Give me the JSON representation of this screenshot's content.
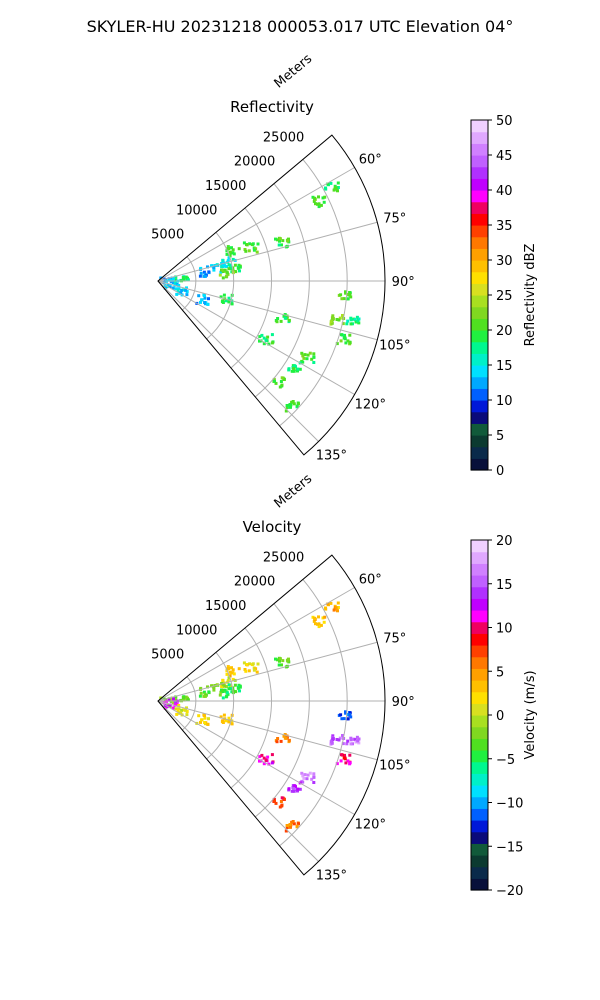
{
  "figure": {
    "suptitle": "SKYLER-HU  20231218  000053.017 UTC Elevation 04°"
  },
  "chart_data": [
    {
      "type": "heatmap",
      "title": "Reflectivity",
      "projection": "polar sector (PPI)",
      "radial_label": "Meters",
      "radial_ticks": [
        5000,
        10000,
        15000,
        20000,
        25000
      ],
      "radial_tick_labels": [
        "5000",
        "10000",
        "15000",
        "20000",
        "25000"
      ],
      "r_range": [
        0,
        30000
      ],
      "azimuth_range_deg": [
        50,
        140
      ],
      "angle_ticks_deg": [
        60,
        75,
        90,
        105,
        120,
        135
      ],
      "angle_tick_labels": [
        "60°",
        "75°",
        "90°",
        "105°",
        "120°",
        "135°"
      ],
      "grid": true,
      "colorbar": {
        "label": "Reflectivity dBZ",
        "vmin": 0,
        "vmax": 50,
        "ticks": [
          0,
          5,
          10,
          15,
          20,
          25,
          30,
          35,
          40,
          45,
          50
        ],
        "tick_labels": [
          "0",
          "5",
          "10",
          "15",
          "20",
          "25",
          "30",
          "35",
          "40",
          "45",
          "50"
        ],
        "colors": [
          "#08103a",
          "#0a2a4a",
          "#0b3a30",
          "#115a3a",
          "#0a0a7a",
          "#0018d8",
          "#0060ff",
          "#00a8ff",
          "#00e0ff",
          "#00f0c8",
          "#00f890",
          "#20f040",
          "#50e020",
          "#80d820",
          "#a8e020",
          "#d8e020",
          "#ffe000",
          "#ffc000",
          "#ffa000",
          "#ff7800",
          "#ff4000",
          "#ff0000",
          "#f00060",
          "#ff00ff",
          "#c000ff",
          "#b030ff",
          "#c060ff",
          "#d080ff",
          "#e0a8ff",
          "#f0d0ff"
        ]
      },
      "echoes": [
        {
          "az": 63,
          "r": 23500,
          "dbz": 20
        },
        {
          "az": 61,
          "r": 26000,
          "dbz": 19
        },
        {
          "az": 72,
          "r": 17000,
          "dbz": 20
        },
        {
          "az": 69,
          "r": 13000,
          "dbz": 21
        },
        {
          "az": 67,
          "r": 10500,
          "dbz": 20
        },
        {
          "az": 74,
          "r": 9500,
          "dbz": 15
        },
        {
          "az": 76,
          "r": 8000,
          "dbz": 14
        },
        {
          "az": 77,
          "r": 6500,
          "dbz": 12
        },
        {
          "az": 79,
          "r": 10000,
          "dbz": 19
        },
        {
          "az": 82,
          "r": 9000,
          "dbz": 22
        },
        {
          "az": 83,
          "r": 3000,
          "dbz": 18
        },
        {
          "az": 87,
          "r": 1000,
          "dbz": 12
        },
        {
          "az": 95,
          "r": 1500,
          "dbz": 14
        },
        {
          "az": 94,
          "r": 24500,
          "dbz": 21
        },
        {
          "az": 104,
          "r": 9000,
          "dbz": 19
        },
        {
          "az": 106,
          "r": 17000,
          "dbz": 20
        },
        {
          "az": 101,
          "r": 26000,
          "dbz": 18
        },
        {
          "az": 102,
          "r": 24000,
          "dbz": 23
        },
        {
          "az": 107,
          "r": 25500,
          "dbz": 20
        },
        {
          "az": 110,
          "r": 3000,
          "dbz": 14
        },
        {
          "az": 112,
          "r": 6000,
          "dbz": 13
        },
        {
          "az": 118,
          "r": 16000,
          "dbz": 19
        },
        {
          "az": 117,
          "r": 22000,
          "dbz": 20
        },
        {
          "az": 122,
          "r": 21000,
          "dbz": 19
        },
        {
          "az": 133,
          "r": 24000,
          "dbz": 20
        },
        {
          "az": 130,
          "r": 20500,
          "dbz": 21
        }
      ]
    },
    {
      "type": "heatmap",
      "title": "Velocity",
      "projection": "polar sector (PPI)",
      "radial_label": "Meters",
      "radial_ticks": [
        5000,
        10000,
        15000,
        20000,
        25000
      ],
      "radial_tick_labels": [
        "5000",
        "10000",
        "15000",
        "20000",
        "25000"
      ],
      "r_range": [
        0,
        30000
      ],
      "azimuth_range_deg": [
        50,
        140
      ],
      "angle_ticks_deg": [
        60,
        75,
        90,
        105,
        120,
        135
      ],
      "angle_tick_labels": [
        "60°",
        "75°",
        "90°",
        "105°",
        "120°",
        "135°"
      ],
      "grid": true,
      "colorbar": {
        "label": "Velocity (m/s)",
        "vmin": -20,
        "vmax": 20,
        "ticks": [
          -20,
          -15,
          -10,
          -5,
          0,
          5,
          10,
          15,
          20
        ],
        "tick_labels": [
          "−20",
          "−15",
          "−10",
          "−5",
          "0",
          "5",
          "10",
          "15",
          "20"
        ],
        "colors": [
          "#08103a",
          "#0a2a4a",
          "#0b3a30",
          "#115a3a",
          "#0a0a7a",
          "#0018d8",
          "#0060ff",
          "#00a8ff",
          "#00e0ff",
          "#00f0c8",
          "#00f890",
          "#20f040",
          "#50e020",
          "#80d820",
          "#a8e020",
          "#d8e020",
          "#ffe000",
          "#ffc000",
          "#ffa000",
          "#ff7800",
          "#ff4000",
          "#ff0000",
          "#f00060",
          "#ff00ff",
          "#c000ff",
          "#b030ff",
          "#c060ff",
          "#d080ff",
          "#e0a8ff",
          "#f0d0ff"
        ]
      },
      "echoes": [
        {
          "az": 63,
          "r": 23500,
          "v": 3
        },
        {
          "az": 61,
          "r": 26000,
          "v": 4
        },
        {
          "az": 72,
          "r": 17000,
          "v": -3
        },
        {
          "az": 69,
          "r": 13000,
          "v": 2
        },
        {
          "az": 67,
          "r": 10500,
          "v": 3
        },
        {
          "az": 74,
          "r": 9500,
          "v": 1
        },
        {
          "az": 76,
          "r": 8000,
          "v": -2
        },
        {
          "az": 77,
          "r": 6500,
          "v": -3
        },
        {
          "az": 79,
          "r": 10000,
          "v": -5
        },
        {
          "az": 82,
          "r": 9000,
          "v": -4
        },
        {
          "az": 83,
          "r": 3000,
          "v": -3
        },
        {
          "az": 87,
          "r": 1000,
          "v": -2
        },
        {
          "az": 95,
          "r": 1500,
          "v": 12
        },
        {
          "az": 94,
          "r": 24500,
          "v": -12
        },
        {
          "az": 104,
          "r": 9000,
          "v": 3
        },
        {
          "az": 106,
          "r": 17000,
          "v": 6
        },
        {
          "az": 101,
          "r": 26000,
          "v": 16
        },
        {
          "az": 102,
          "r": 24000,
          "v": 15
        },
        {
          "az": 107,
          "r": 25500,
          "v": 10
        },
        {
          "az": 110,
          "r": 3000,
          "v": 1
        },
        {
          "az": 112,
          "r": 6000,
          "v": 2
        },
        {
          "az": 118,
          "r": 16000,
          "v": 11
        },
        {
          "az": 117,
          "r": 22000,
          "v": 16
        },
        {
          "az": 122,
          "r": 21000,
          "v": 14
        },
        {
          "az": 133,
          "r": 24000,
          "v": 6
        },
        {
          "az": 130,
          "r": 20500,
          "v": 8
        }
      ]
    }
  ]
}
